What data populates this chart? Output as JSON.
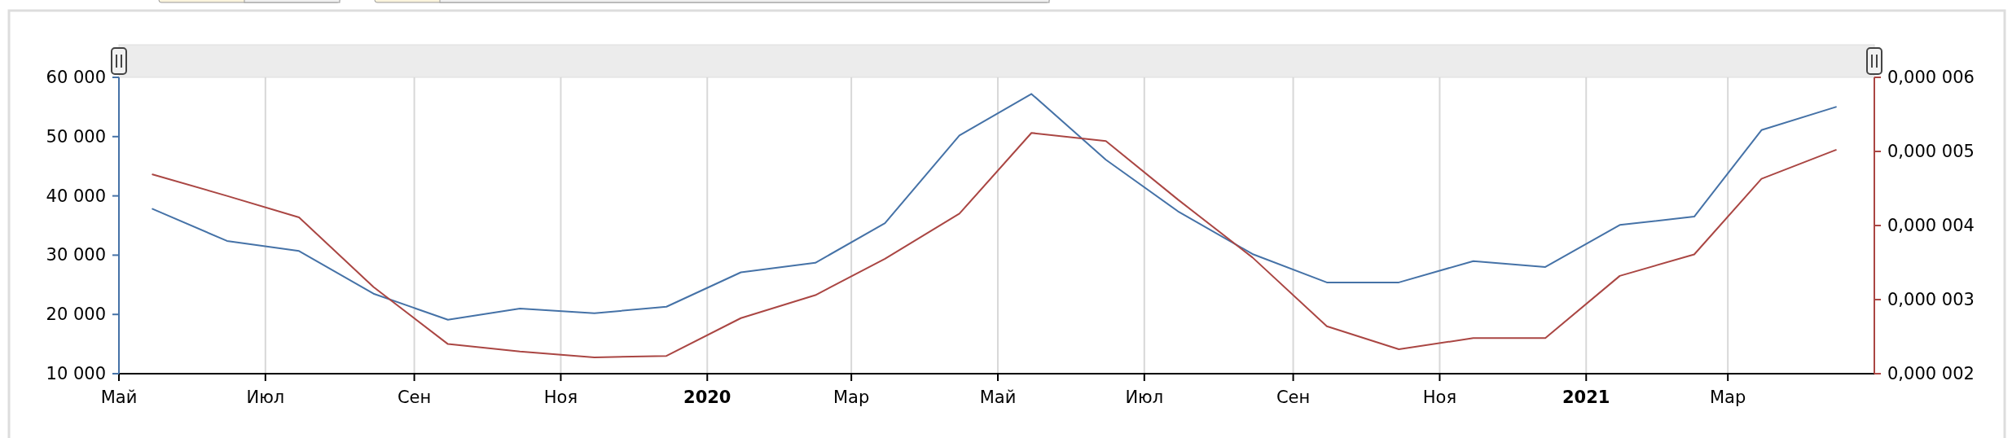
{
  "chart_data": {
    "type": "line",
    "x": [
      "2019-05-15",
      "2019-06-15",
      "2019-07-15",
      "2019-08-15",
      "2019-09-15",
      "2019-10-15",
      "2019-11-15",
      "2019-12-15",
      "2020-01-15",
      "2020-02-15",
      "2020-03-15",
      "2020-04-15",
      "2020-05-15",
      "2020-06-15",
      "2020-07-15",
      "2020-08-15",
      "2020-09-15",
      "2020-10-15",
      "2020-11-15",
      "2020-12-15",
      "2021-01-15",
      "2021-02-15",
      "2021-03-15",
      "2021-04-15"
    ],
    "series": [
      {
        "color": "#4572a7",
        "values": [
          37800,
          32400,
          30700,
          23500,
          19100,
          21000,
          20200,
          21300,
          27100,
          28700,
          35400,
          50200,
          57200,
          46100,
          37400,
          30200,
          25400,
          25400,
          29000,
          28000,
          35100,
          36500,
          51100,
          55000
        ]
      },
      {
        "color": "#aa4643",
        "axis": "y2",
        "values": [
          4.69e-06,
          4.4e-06,
          4.11e-06,
          3.17e-06,
          2.4e-06,
          2.3e-06,
          2.22e-06,
          2.24e-06,
          2.75e-06,
          3.06e-06,
          3.55e-06,
          4.16e-06,
          5.25e-06,
          5.14e-06,
          4.35e-06,
          3.57e-06,
          2.64e-06,
          2.33e-06,
          2.48e-06,
          2.48e-06,
          3.32e-06,
          3.61e-06,
          4.63e-06,
          5.02e-06
        ]
      }
    ],
    "xlim": [
      "2019-05-01",
      "2021-05-01"
    ],
    "xticks": [
      {
        "value": "2019-05-01",
        "label": "Май"
      },
      {
        "value": "2019-07-01",
        "label": "Июл"
      },
      {
        "value": "2019-09-01",
        "label": "Сен"
      },
      {
        "value": "2019-11-01",
        "label": "Ноя"
      },
      {
        "value": "2020-01-01",
        "label": "2020"
      },
      {
        "value": "2020-03-01",
        "label": "Мар"
      },
      {
        "value": "2020-05-01",
        "label": "Май"
      },
      {
        "value": "2020-07-01",
        "label": "Июл"
      },
      {
        "value": "2020-09-01",
        "label": "Сен"
      },
      {
        "value": "2020-11-01",
        "label": "Ноя"
      },
      {
        "value": "2021-01-01",
        "label": "2021"
      },
      {
        "value": "2021-03-01",
        "label": "Мар"
      }
    ],
    "ylim": [
      10000,
      60000
    ],
    "yticks": [
      {
        "value": 10000,
        "label": "10 000"
      },
      {
        "value": 20000,
        "label": "20 000"
      },
      {
        "value": 30000,
        "label": "30 000"
      },
      {
        "value": 40000,
        "label": "40 000"
      },
      {
        "value": 50000,
        "label": "50 000"
      },
      {
        "value": 60000,
        "label": "60 000"
      }
    ],
    "y2lim": [
      2e-06,
      6e-06
    ],
    "y2ticks": [
      {
        "value": 2e-06,
        "label": "0,000 002"
      },
      {
        "value": 3e-06,
        "label": "0,000 003"
      },
      {
        "value": 4e-06,
        "label": "0,000 004"
      },
      {
        "value": 5e-06,
        "label": "0,000 005"
      },
      {
        "value": 6e-06,
        "label": "0,000 006"
      }
    ],
    "grid": "x"
  }
}
